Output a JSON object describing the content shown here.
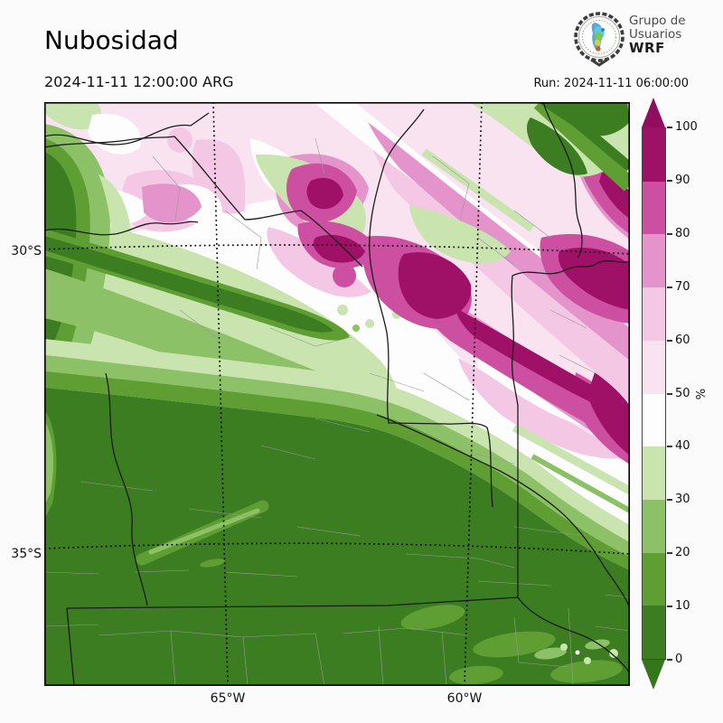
{
  "header": {
    "title": "Nubosidad",
    "valid_time": "2024-11-11 12:00:00 ARG",
    "run_time": "Run: 2024-11-11 06:00:00",
    "logo": {
      "line1": "Grupo de",
      "line2": "Usuarios",
      "line3": "WRF"
    }
  },
  "map": {
    "lat_labels": [
      "30°S",
      "35°S"
    ],
    "lon_labels": [
      "65°W",
      "60°W"
    ]
  },
  "colorbar": {
    "unit": "%",
    "ticks": [
      "0",
      "10",
      "20",
      "30",
      "40",
      "50",
      "60",
      "70",
      "80",
      "90",
      "100"
    ],
    "segments": [
      {
        "from": 0,
        "to": 10,
        "color": "#3b7d20"
      },
      {
        "from": 10,
        "to": 20,
        "color": "#5f9e33"
      },
      {
        "from": 20,
        "to": 30,
        "color": "#8dc167"
      },
      {
        "from": 30,
        "to": 40,
        "color": "#c9e4ae"
      },
      {
        "from": 40,
        "to": 50,
        "color": "#fefdfe"
      },
      {
        "from": 50,
        "to": 60,
        "color": "#f9e3f1"
      },
      {
        "from": 60,
        "to": 70,
        "color": "#f4c8e5"
      },
      {
        "from": 70,
        "to": 80,
        "color": "#e494ca"
      },
      {
        "from": 80,
        "to": 90,
        "color": "#cd4fa1"
      },
      {
        "from": 90,
        "to": 100,
        "color": "#9e1166"
      }
    ],
    "over_color": "#8f0e5d",
    "under_color": "#35761d"
  }
}
